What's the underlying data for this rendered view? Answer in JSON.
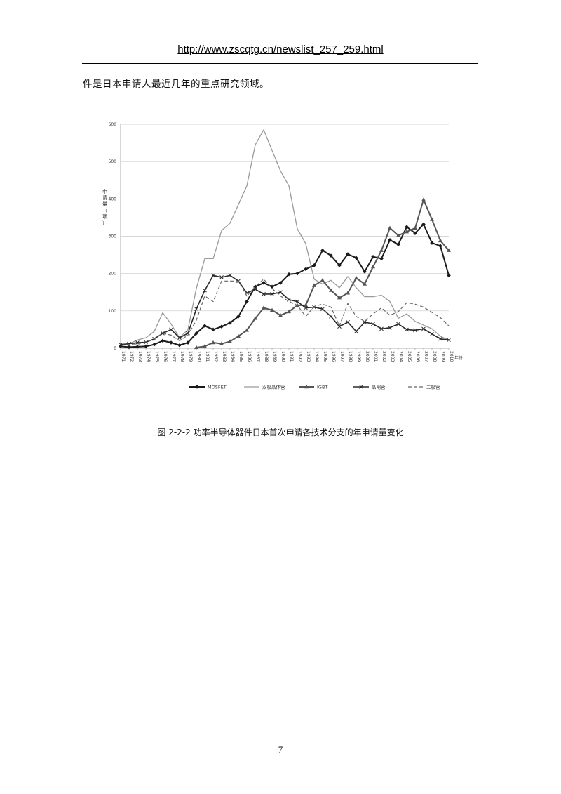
{
  "header": {
    "url": "http://www.zscqtg.cn/newslist_257_259.html"
  },
  "intro_text": "件是日本申请人最近几年的重点研究领域。",
  "caption": "图 2-2-2 功率半导体器件日本首次申请各技术分支的年申请量变化",
  "page_number": "7",
  "colors": {
    "mosfet": "#1a1a1a",
    "bipolar": "#9a9a9a",
    "igbt": "#555555",
    "thyristor": "#2a2a2a",
    "diode": "#666666",
    "grid": "#c8c8c8"
  },
  "chart_data": {
    "type": "line",
    "title": "",
    "xlabel": "年份",
    "ylabel": "申请量（项）",
    "ylim": [
      0,
      600
    ],
    "yticks": [
      "0",
      "100",
      "200",
      "300",
      "400",
      "500",
      "600"
    ],
    "grid": true,
    "legend_position": "bottom",
    "categories": [
      "1971",
      "1972",
      "1973",
      "1974",
      "1975",
      "1976",
      "1977",
      "1978",
      "1979",
      "1980",
      "1981",
      "1982",
      "1983",
      "1984",
      "1985",
      "1986",
      "1987",
      "1988",
      "1989",
      "1990",
      "1991",
      "1992",
      "1993",
      "1994",
      "1995",
      "1996",
      "1997",
      "1998",
      "1999",
      "2000",
      "2001",
      "2002",
      "2003",
      "2004",
      "2005",
      "2006",
      "2007",
      "2008",
      "2009",
      "2010"
    ],
    "series": [
      {
        "name": "MOSFET",
        "marker": "diamond",
        "dash": "",
        "values": [
          5,
          3,
          4,
          5,
          10,
          20,
          15,
          8,
          15,
          40,
          60,
          50,
          58,
          68,
          85,
          125,
          165,
          175,
          165,
          175,
          198,
          200,
          212,
          222,
          262,
          248,
          222,
          252,
          242,
          205,
          245,
          240,
          290,
          278,
          325,
          308,
          332,
          282,
          274,
          195
        ]
      },
      {
        "name": "双极晶体管",
        "marker": "none",
        "dash": "",
        "values": [
          8,
          12,
          22,
          28,
          45,
          95,
          65,
          28,
          50,
          160,
          240,
          240,
          315,
          335,
          385,
          435,
          545,
          585,
          530,
          475,
          435,
          320,
          280,
          185,
          172,
          182,
          162,
          192,
          162,
          138,
          138,
          142,
          125,
          80,
          92,
          72,
          62,
          52,
          32,
          22
        ]
      },
      {
        "name": "IGBT",
        "marker": "triangle",
        "dash": "",
        "values": [
          null,
          null,
          null,
          null,
          null,
          null,
          null,
          null,
          null,
          2,
          5,
          15,
          12,
          18,
          32,
          48,
          80,
          108,
          102,
          88,
          98,
          115,
          115,
          168,
          182,
          155,
          135,
          148,
          188,
          172,
          218,
          262,
          322,
          302,
          312,
          322,
          398,
          345,
          288,
          262
        ]
      },
      {
        "name": "晶闸管",
        "marker": "x",
        "dash": "",
        "values": [
          10,
          12,
          15,
          16,
          25,
          40,
          50,
          28,
          40,
          105,
          155,
          195,
          190,
          195,
          180,
          148,
          158,
          145,
          145,
          150,
          130,
          125,
          108,
          110,
          105,
          85,
          58,
          70,
          45,
          70,
          65,
          52,
          55,
          65,
          50,
          48,
          52,
          38,
          25,
          22
        ]
      },
      {
        "name": "二极管",
        "marker": "none",
        "dash": "5,3",
        "values": [
          8,
          10,
          12,
          15,
          25,
          40,
          35,
          20,
          35,
          75,
          140,
          125,
          180,
          180,
          180,
          140,
          165,
          185,
          160,
          140,
          125,
          115,
          85,
          112,
          118,
          110,
          60,
          120,
          85,
          72,
          92,
          108,
          88,
          98,
          122,
          118,
          110,
          96,
          82,
          60
        ]
      }
    ]
  }
}
